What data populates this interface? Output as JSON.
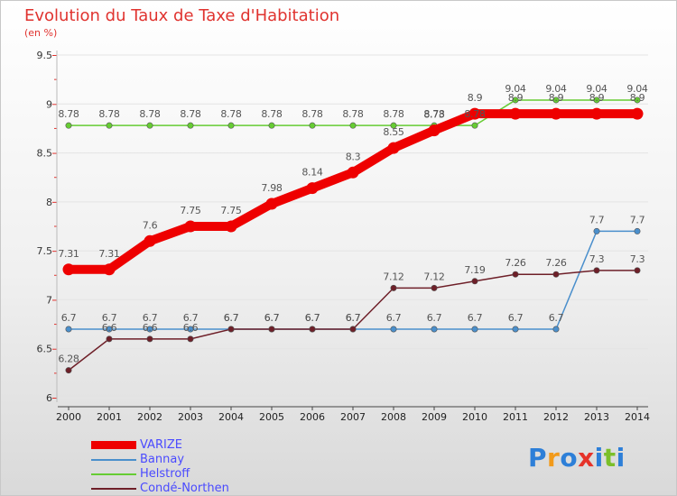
{
  "chart_data": {
    "type": "line",
    "title": "Evolution du Taux de Taxe d'Habitation",
    "ylabel": "(en %)",
    "xlabel": "",
    "ylim": [
      6,
      9.5
    ],
    "yticks": [
      "6",
      "6.5",
      "7",
      "7.5",
      "8",
      "8.5",
      "9",
      "9.5"
    ],
    "categories": [
      "2000",
      "2001",
      "2002",
      "2003",
      "2004",
      "2005",
      "2006",
      "2007",
      "2008",
      "2009",
      "2010",
      "2011",
      "2012",
      "2013",
      "2014"
    ],
    "series": [
      {
        "name": "VARIZE",
        "color": "#ee0000",
        "values": [
          7.31,
          7.31,
          7.6,
          7.75,
          7.75,
          7.98,
          8.14,
          8.3,
          8.55,
          8.73,
          8.9,
          8.9,
          8.9,
          8.9,
          8.9
        ],
        "labels": [
          "7.31",
          "7.31",
          "7.6",
          "7.75",
          "7.75",
          "7.98",
          "8.14",
          "8.3",
          "8.55",
          "8.73",
          "8.9",
          "8.9",
          "8.9",
          "8.9",
          "8.9"
        ]
      },
      {
        "name": "Bannay",
        "color": "#4a8fcc",
        "values": [
          6.7,
          6.7,
          6.7,
          6.7,
          6.7,
          6.7,
          6.7,
          6.7,
          6.7,
          6.7,
          6.7,
          6.7,
          6.7,
          7.7,
          7.7
        ],
        "labels": [
          "6.7",
          "6.7",
          "6.7",
          "6.7",
          "6.7",
          "6.7",
          "6.7",
          "6.7",
          "6.7",
          "6.7",
          "6.7",
          "6.7",
          "6.7",
          "7.7",
          "7.7"
        ]
      },
      {
        "name": "Helstroff",
        "color": "#66cc33",
        "values": [
          8.78,
          8.78,
          8.78,
          8.78,
          8.78,
          8.78,
          8.78,
          8.78,
          8.78,
          8.78,
          8.78,
          9.04,
          9.04,
          9.04,
          9.04
        ],
        "labels": [
          "8.78",
          "8.78",
          "8.78",
          "8.78",
          "8.78",
          "8.78",
          "8.78",
          "8.78",
          "8.78",
          "8.78",
          "8.78",
          "9.04",
          "9.04",
          "9.04",
          "9.04"
        ]
      },
      {
        "name": "Condé-Northen",
        "color": "#6e1f28",
        "values": [
          6.28,
          6.6,
          6.6,
          6.6,
          6.7,
          6.7,
          6.7,
          6.7,
          7.12,
          7.12,
          7.19,
          7.26,
          7.26,
          7.3,
          7.3
        ],
        "labels": [
          "6.28",
          "6.6",
          "6.6",
          "6.6",
          "6.7",
          "6.7",
          "6.7",
          "6.7",
          "7.12",
          "7.12",
          "7.19",
          "7.26",
          "7.26",
          "7.3",
          "7.3"
        ]
      }
    ],
    "legend": "bottom-left"
  },
  "logo": {
    "letters": [
      "P",
      "r",
      "o",
      "x",
      "i",
      "t",
      "i"
    ],
    "colors": [
      "#2d7fd8",
      "#f29a1a",
      "#2d7fd8",
      "#e6332a",
      "#2d7fd8",
      "#7bbf2a",
      "#2d7fd8"
    ]
  }
}
